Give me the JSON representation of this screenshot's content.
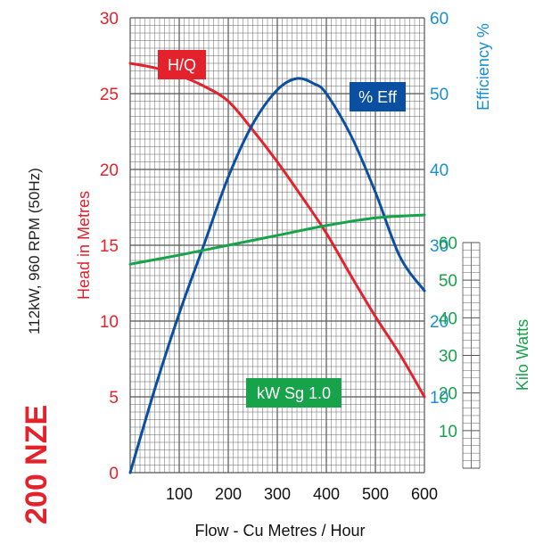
{
  "model": "200 NZE",
  "spec": "112kW, 960 RPM (50Hz)",
  "colors": {
    "head": "#e3222c",
    "efficiency": "#0a4fa2",
    "efficiency_axis": "#1a8fd0",
    "power": "#16a34a",
    "grid": "#555555"
  },
  "chart_data": {
    "type": "line",
    "xlabel": "Flow - Cu Metres / Hour",
    "xlim": [
      0,
      600
    ],
    "xticks": [
      100,
      200,
      300,
      400,
      500,
      600
    ],
    "axes": {
      "head": {
        "label": "Head in Metres",
        "lim": [
          0,
          30
        ],
        "ticks": [
          0,
          5,
          10,
          15,
          20,
          25,
          30
        ]
      },
      "efficiency": {
        "label": "Efficiency %",
        "lim": [
          0,
          60
        ],
        "ticks": [
          10,
          20,
          30,
          40,
          50,
          60
        ]
      },
      "power": {
        "label": "Kilo Watts",
        "lim": [
          0,
          60
        ],
        "ticks": [
          10,
          20,
          30,
          40,
          50,
          60
        ]
      }
    },
    "series": [
      {
        "name": "H/Q",
        "axis": "head",
        "x": [
          0,
          50,
          100,
          150,
          200,
          250,
          300,
          350,
          400,
          450,
          500,
          550,
          600
        ],
        "y": [
          27.0,
          26.7,
          26.2,
          25.5,
          24.5,
          22.6,
          20.5,
          18.2,
          15.8,
          13.0,
          10.3,
          7.8,
          5.0
        ]
      },
      {
        "name": "% Eff",
        "axis": "efficiency",
        "x": [
          0,
          50,
          100,
          150,
          200,
          250,
          300,
          340,
          375,
          400,
          450,
          500,
          550,
          600
        ],
        "y": [
          0,
          11,
          21,
          30,
          39,
          46,
          50.5,
          52,
          51.3,
          50,
          44.5,
          37,
          28.5,
          24
        ]
      },
      {
        "name": "kW Sg 1.0",
        "axis": "power",
        "x": [
          0,
          100,
          200,
          300,
          400,
          500,
          600
        ],
        "y": [
          27.5,
          28.7,
          30,
          31.3,
          32.6,
          33.6,
          34
        ]
      }
    ]
  }
}
